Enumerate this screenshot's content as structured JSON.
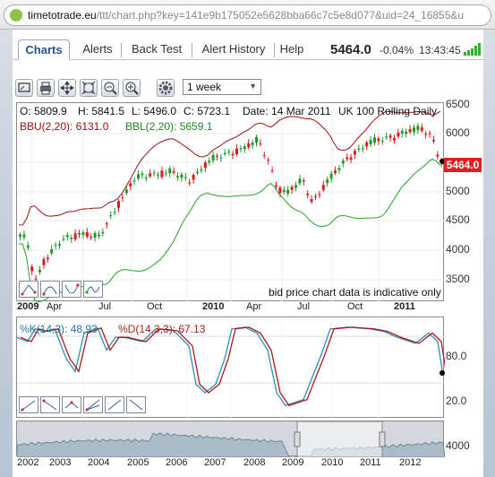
{
  "browser": {
    "url_domain": "timetotrade.eu",
    "url_path": "/ttt/chart.php?key=141e9b175052e5628bba66c7c5e8d077&uid=24_16855&u"
  },
  "tabs": [
    {
      "label": "Charts",
      "active": true
    },
    {
      "label": "Alerts"
    },
    {
      "label": "Back Test"
    },
    {
      "label": "Alert History"
    },
    {
      "label": "Help"
    }
  ],
  "status": {
    "price": "5464.0",
    "change": "-0.04%",
    "time": "13:43:45"
  },
  "toolbar": {
    "period": "1 week",
    "icons": [
      "draw-icon",
      "print-icon",
      "move-icon",
      "fit-icon",
      "zoom-out-icon",
      "zoom-in-icon",
      "settings-icon"
    ]
  },
  "main_chart": {
    "ohlc": {
      "o": "O: 5809.9",
      "h": "H: 5841.5",
      "l": "L: 5496.0",
      "c": "C: 5723.1",
      "date": "Date: 14 Mar 2011",
      "name": "UK 100 Rolling Daily"
    },
    "bbu": "BBU(2,20): 6131.0",
    "bbl": "BBL(2,20): 5659.1",
    "note": "bid price chart data is indicative only",
    "current_tag": "5464.0",
    "y_ticks": [
      "6500",
      "6000",
      "5500",
      "5000",
      "4500",
      "4000",
      "3500"
    ],
    "colors": {
      "up": "#1f9a2a",
      "down": "#dd1c1c",
      "bbu": "#a01010",
      "bbl": "#28a028"
    }
  },
  "time_axis": [
    {
      "t": "2009",
      "b": true
    },
    {
      "t": "Apr"
    },
    {
      "t": "Jul"
    },
    {
      "t": "Oct"
    },
    {
      "t": "2010",
      "b": true
    },
    {
      "t": "Apr"
    },
    {
      "t": "Jul"
    },
    {
      "t": "Oct"
    },
    {
      "t": "2011",
      "b": true
    }
  ],
  "stoch": {
    "k": "%K(14,3): 48.93",
    "d": "%D(14,3,3): 67.13",
    "y_ticks": [
      "80.0",
      "20.0"
    ]
  },
  "navigator": {
    "y_tick": "4000",
    "years": [
      "2002",
      "2003",
      "2004",
      "2005",
      "2006",
      "2007",
      "2008",
      "2009",
      "2010",
      "2011",
      "2012"
    ]
  }
}
